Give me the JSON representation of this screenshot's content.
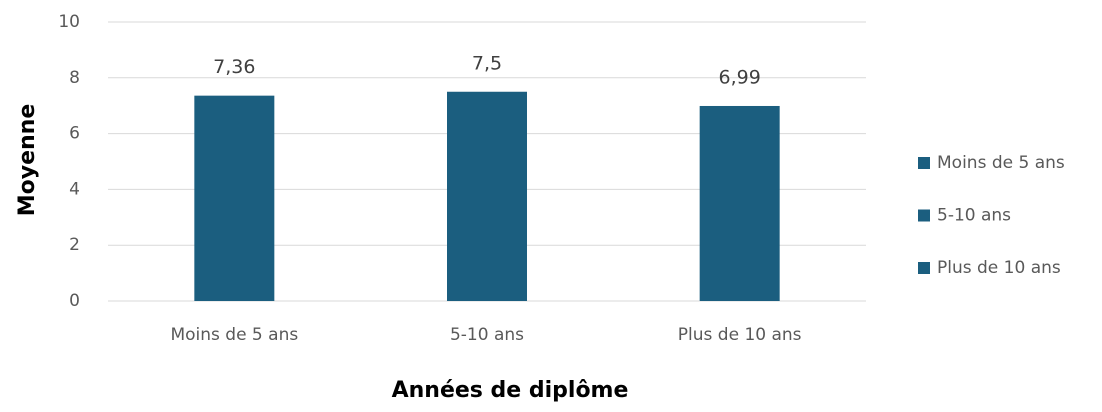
{
  "chart_data": {
    "type": "bar",
    "x_label": "Années de diplôme",
    "y_label": "Moyenne",
    "categories": [
      "Moins de 5 ans",
      "5-10 ans",
      "Plus de 10 ans"
    ],
    "values": [
      7.36,
      7.5,
      6.99
    ],
    "value_labels": [
      "7,36",
      "7,5",
      "6,99"
    ],
    "color": "#1b5e7f",
    "ylim": [
      0,
      10
    ],
    "yticks": [
      0,
      2,
      4,
      6,
      8,
      10
    ],
    "grid": true,
    "legend": "right"
  }
}
